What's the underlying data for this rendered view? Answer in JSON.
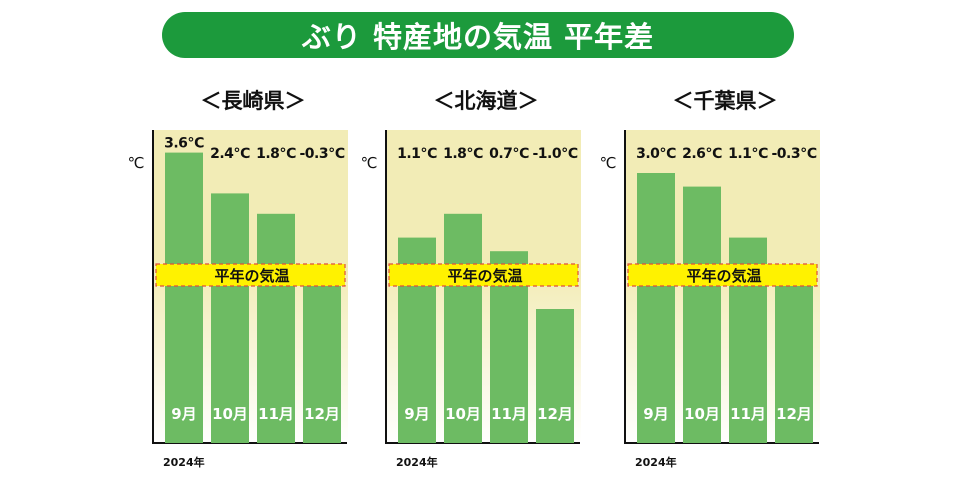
{
  "title": "ぶり 特産地の気温 平年差",
  "colors": {
    "banner": "#1c9a3c",
    "bar": "#6dbb63",
    "bar_label": "#ffffff",
    "plot_bg_top": "#f2ecb6",
    "plot_bg_bottom": "#ffffff",
    "normal_band": "#fff200",
    "normal_band_border": "#e0503a",
    "axis": "#111111"
  },
  "chart_data": [
    {
      "type": "bar",
      "title": "＜長崎県＞",
      "ylabel": "℃",
      "normal_label": "平年の気温",
      "year_label": "2024年",
      "categories": [
        "9月",
        "10月",
        "11月",
        "12月"
      ],
      "values": [
        3.6,
        2.4,
        1.8,
        -0.3
      ],
      "value_labels": [
        "3.6℃",
        "2.4℃",
        "1.8℃",
        "-0.3℃"
      ]
    },
    {
      "type": "bar",
      "title": "＜北海道＞",
      "ylabel": "℃",
      "normal_label": "平年の気温",
      "year_label": "2024年",
      "categories": [
        "9月",
        "10月",
        "11月",
        "12月"
      ],
      "values": [
        1.1,
        1.8,
        0.7,
        -1.0
      ],
      "value_labels": [
        "1.1℃",
        "1.8℃",
        "0.7℃",
        "-1.0℃"
      ]
    },
    {
      "type": "bar",
      "title": "＜千葉県＞",
      "ylabel": "℃",
      "normal_label": "平年の気温",
      "year_label": "2024年",
      "categories": [
        "9月",
        "10月",
        "11月",
        "12月"
      ],
      "values": [
        3.0,
        2.6,
        1.1,
        -0.3
      ],
      "value_labels": [
        "3.0℃",
        "2.6℃",
        "1.1℃",
        "-0.3℃"
      ]
    }
  ]
}
